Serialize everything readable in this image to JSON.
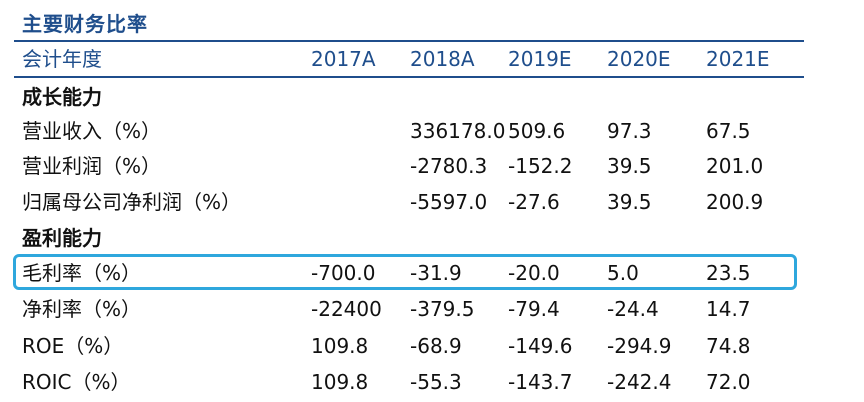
{
  "title": "主要财务比率",
  "header": {
    "label": "会计年度",
    "years": [
      "2017A",
      "2018A",
      "2019E",
      "2020E",
      "2021E"
    ]
  },
  "rows": [
    {
      "type": "section",
      "label": "成长能力",
      "values": [
        "",
        "",
        "",
        "",
        ""
      ]
    },
    {
      "type": "data",
      "label": "营业收入（%）",
      "values": [
        "",
        "336178.0",
        "509.6",
        "97.3",
        "67.5"
      ]
    },
    {
      "type": "data",
      "label": "营业利润（%）",
      "values": [
        "",
        "-2780.3",
        "-152.2",
        "39.5",
        "201.0"
      ]
    },
    {
      "type": "data",
      "label": "归属母公司净利润（%）",
      "values": [
        "",
        "-5597.0",
        "-27.6",
        "39.5",
        "200.9"
      ]
    },
    {
      "type": "section",
      "label": "盈利能力",
      "values": [
        "",
        "",
        "",
        "",
        ""
      ]
    },
    {
      "type": "data",
      "label": "毛利率（%）",
      "values": [
        "-700.0",
        "-31.9",
        "-20.0",
        "5.0",
        "23.5"
      ],
      "highlighted": true
    },
    {
      "type": "data",
      "label": "净利率（%）",
      "values": [
        "-22400",
        "-379.5",
        "-79.4",
        "-24.4",
        "14.7"
      ]
    },
    {
      "type": "data",
      "label": "ROE（%）",
      "values": [
        "109.8",
        "-68.9",
        "-149.6",
        "-294.9",
        "74.8"
      ]
    },
    {
      "type": "data",
      "label": "ROIC（%）",
      "values": [
        "109.8",
        "-55.3",
        "-143.7",
        "-242.4",
        "72.0"
      ]
    }
  ],
  "colors": {
    "header_text": "#1f4e8c",
    "rule": "#1f4e8c",
    "highlight_border": "#2fa7dd",
    "body_text": "#111111"
  }
}
